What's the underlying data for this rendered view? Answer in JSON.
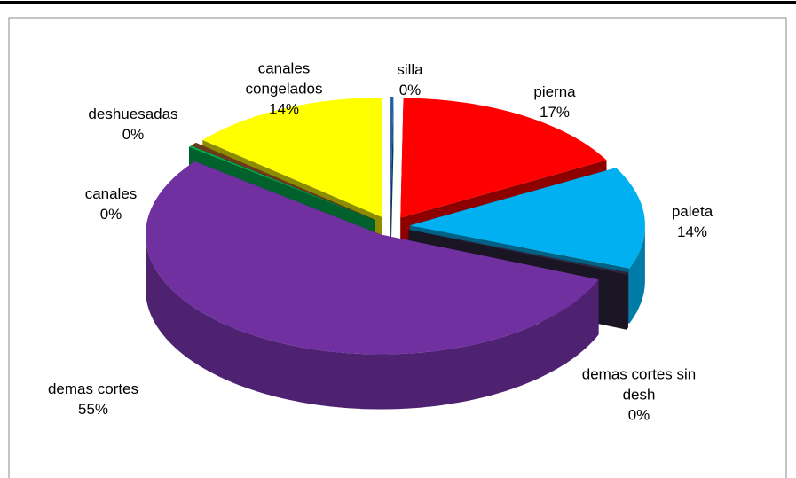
{
  "chart_data": {
    "type": "pie3d",
    "categories": [
      "silla",
      "pierna",
      "paleta",
      "demas cortes sin desh",
      "demas cortes",
      "canales",
      "deshuesadas",
      "canales congelados"
    ],
    "values": [
      0.2,
      17,
      14,
      0.3,
      55,
      0.2,
      0.5,
      14
    ],
    "value_labels": [
      "0%",
      "17%",
      "14%",
      "0%",
      "55%",
      "0%",
      "0%",
      "14%"
    ],
    "colors": [
      "#1f5fa8",
      "#ff0000",
      "#00b0f0",
      "#2e2640",
      "#7030a0",
      "#00b050",
      "#6b3a1a",
      "#ffff00"
    ]
  }
}
